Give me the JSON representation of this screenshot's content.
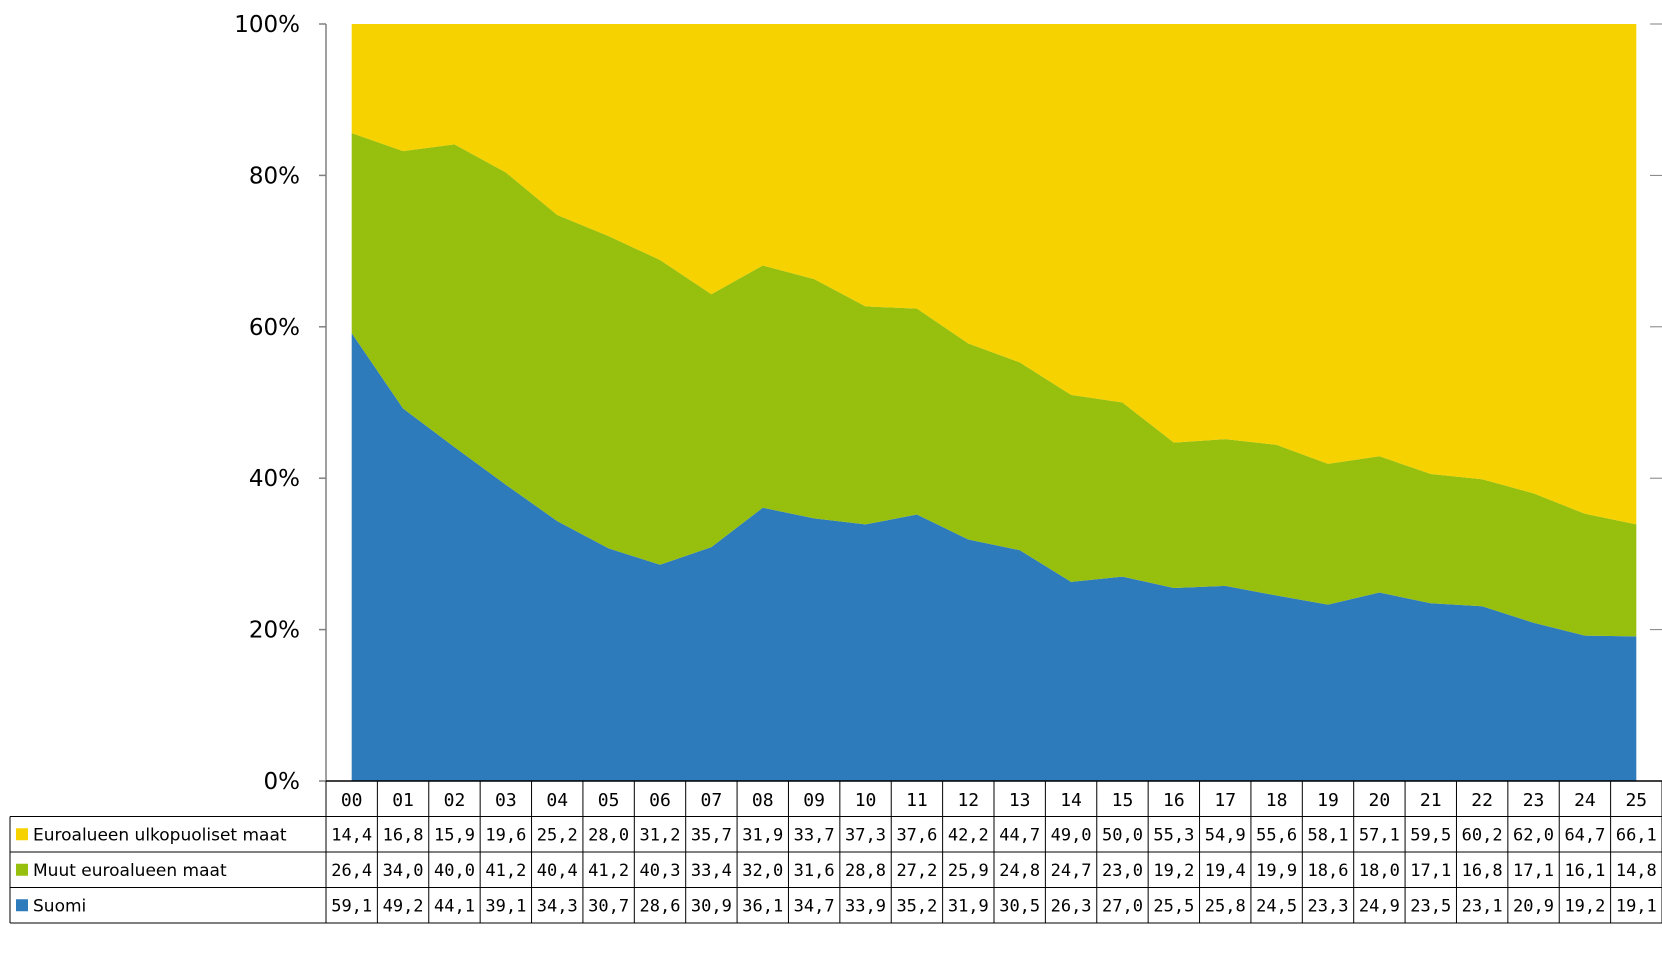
{
  "chart_data": {
    "type": "area",
    "stacked": "percent",
    "categories": [
      "00",
      "01",
      "02",
      "03",
      "04",
      "05",
      "06",
      "07",
      "08",
      "09",
      "10",
      "11",
      "12",
      "13",
      "14",
      "15",
      "16",
      "17",
      "18",
      "19",
      "20",
      "21",
      "22",
      "23",
      "24",
      "25"
    ],
    "y_ticks": [
      "0%",
      "20%",
      "40%",
      "60%",
      "80%",
      "100%"
    ],
    "ylim": [
      0,
      100
    ],
    "grid": false,
    "legend": "data-table-bottom",
    "series": [
      {
        "name": "Suomi",
        "color": "#2E7BBB",
        "values": [
          59.1,
          49.2,
          44.1,
          39.1,
          34.3,
          30.7,
          28.6,
          30.9,
          36.1,
          34.7,
          33.9,
          35.2,
          31.9,
          30.5,
          26.3,
          27.0,
          25.5,
          25.8,
          24.5,
          23.3,
          24.9,
          23.5,
          23.1,
          20.9,
          19.2,
          19.1
        ],
        "labels": [
          "59,1",
          "49,2",
          "44,1",
          "39,1",
          "34,3",
          "30,7",
          "28,6",
          "30,9",
          "36,1",
          "34,7",
          "33,9",
          "35,2",
          "31,9",
          "30,5",
          "26,3",
          "27,0",
          "25,5",
          "25,8",
          "24,5",
          "23,3",
          "24,9",
          "23,5",
          "23,1",
          "20,9",
          "19,2",
          "19,1"
        ]
      },
      {
        "name": "Muut euroalueen maat",
        "color": "#97BF0D",
        "values": [
          26.4,
          34.0,
          40.0,
          41.2,
          40.4,
          41.2,
          40.3,
          33.4,
          32.0,
          31.6,
          28.8,
          27.2,
          25.9,
          24.8,
          24.7,
          23.0,
          19.2,
          19.4,
          19.9,
          18.6,
          18.0,
          17.1,
          16.8,
          17.1,
          16.1,
          14.8
        ],
        "labels": [
          "26,4",
          "34,0",
          "40,0",
          "41,2",
          "40,4",
          "41,2",
          "40,3",
          "33,4",
          "32,0",
          "31,6",
          "28,8",
          "27,2",
          "25,9",
          "24,8",
          "24,7",
          "23,0",
          "19,2",
          "19,4",
          "19,9",
          "18,6",
          "18,0",
          "17,1",
          "16,8",
          "17,1",
          "16,1",
          "14,8"
        ]
      },
      {
        "name": "Euroalueen ulkopuoliset maat",
        "color": "#F5D200",
        "values": [
          14.4,
          16.8,
          15.9,
          19.6,
          25.2,
          28.0,
          31.2,
          35.7,
          31.9,
          33.7,
          37.3,
          37.6,
          42.2,
          44.7,
          49.0,
          50.0,
          55.3,
          54.9,
          55.6,
          58.1,
          57.1,
          59.5,
          60.2,
          62.0,
          64.7,
          66.1
        ],
        "labels": [
          "14,4",
          "16,8",
          "15,9",
          "19,6",
          "25,2",
          "28,0",
          "31,2",
          "35,7",
          "31,9",
          "33,7",
          "37,3",
          "37,6",
          "42,2",
          "44,7",
          "49,0",
          "50,0",
          "55,3",
          "54,9",
          "55,6",
          "58,1",
          "57,1",
          "59,5",
          "60,2",
          "62,0",
          "64,7",
          "66,1"
        ]
      }
    ],
    "table_rows": [
      "Euroalueen ulkopuoliset maat",
      "Muut euroalueen maat",
      "Suomi"
    ]
  }
}
